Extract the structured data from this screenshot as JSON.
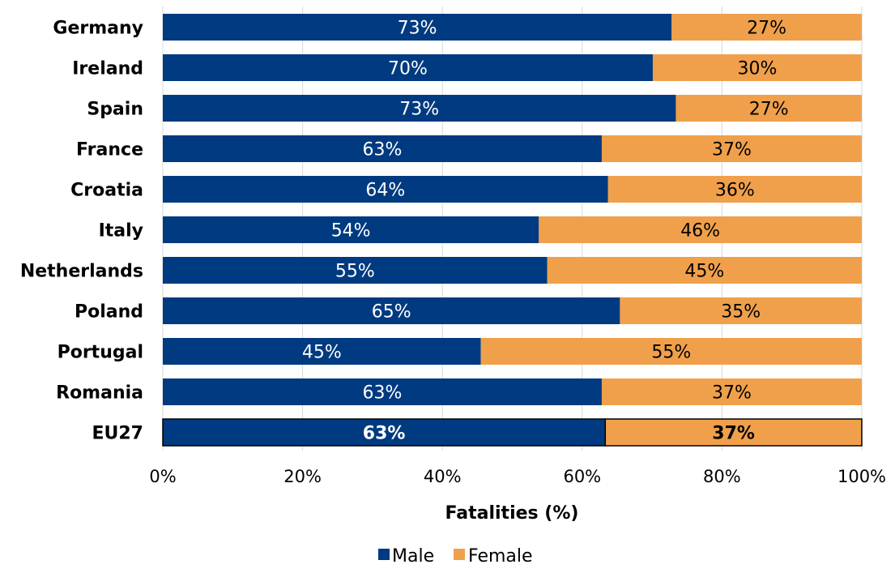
{
  "chart_data": {
    "type": "bar",
    "orientation": "horizontal",
    "stacked": "percent",
    "categories": [
      "Germany",
      "Ireland",
      "Spain",
      "France",
      "Croatia",
      "Italy",
      "Netherlands",
      "Poland",
      "Portugal",
      "Romania",
      "EU27"
    ],
    "series": [
      {
        "name": "Male",
        "color": "#003a80",
        "values": [
          73,
          70,
          73,
          63,
          64,
          54,
          55,
          65,
          45,
          63,
          63
        ],
        "labels": [
          "73%",
          "70%",
          "73%",
          "63%",
          "64%",
          "54%",
          "55%",
          "65%",
          "45%",
          "63%",
          "63%"
        ]
      },
      {
        "name": "Female",
        "color": "#f0a04b",
        "values": [
          27,
          30,
          27,
          37,
          36,
          46,
          45,
          35,
          55,
          37,
          37
        ],
        "labels": [
          "27%",
          "30%",
          "27%",
          "37%",
          "36%",
          "46%",
          "45%",
          "35%",
          "55%",
          "37%",
          "37%"
        ]
      }
    ],
    "male_exact": [
      72.8,
      70.1,
      73.4,
      62.8,
      63.7,
      53.8,
      55.0,
      65.4,
      45.5,
      62.8,
      63.3
    ],
    "highlighted_category": "EU27",
    "xlabel": "Fatalities (%)",
    "ylabel": "",
    "title": "",
    "xlim": [
      0,
      100
    ],
    "xticks": [
      "0%",
      "20%",
      "40%",
      "60%",
      "80%",
      "100%"
    ],
    "grid": "vertical",
    "legend": "bottom"
  }
}
